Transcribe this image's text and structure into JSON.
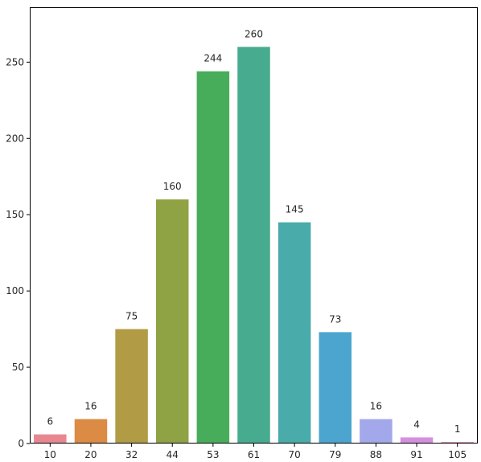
{
  "chart_data": {
    "type": "bar",
    "title": "",
    "xlabel": "",
    "ylabel": "",
    "categories": [
      "10",
      "20",
      "32",
      "44",
      "53",
      "61",
      "70",
      "79",
      "88",
      "91",
      "105"
    ],
    "values": [
      6,
      16,
      75,
      160,
      244,
      260,
      145,
      73,
      16,
      4,
      1
    ],
    "data_labels": [
      "6",
      "16",
      "75",
      "160",
      "244",
      "260",
      "145",
      "73",
      "16",
      "4",
      "1"
    ],
    "ylim": [
      0,
      286
    ],
    "yticks": [
      0,
      50,
      100,
      150,
      200,
      250
    ],
    "ytick_labels": [
      "0",
      "50",
      "100",
      "150",
      "200",
      "250"
    ],
    "grid": false,
    "legend": "none",
    "colors": [
      "#e8878f",
      "#db8b43",
      "#b19b44",
      "#8fa344",
      "#47ad5b",
      "#47ab90",
      "#49abaa",
      "#4ba5cf",
      "#a3a8ea",
      "#d68ee0",
      "#e287c0"
    ]
  }
}
